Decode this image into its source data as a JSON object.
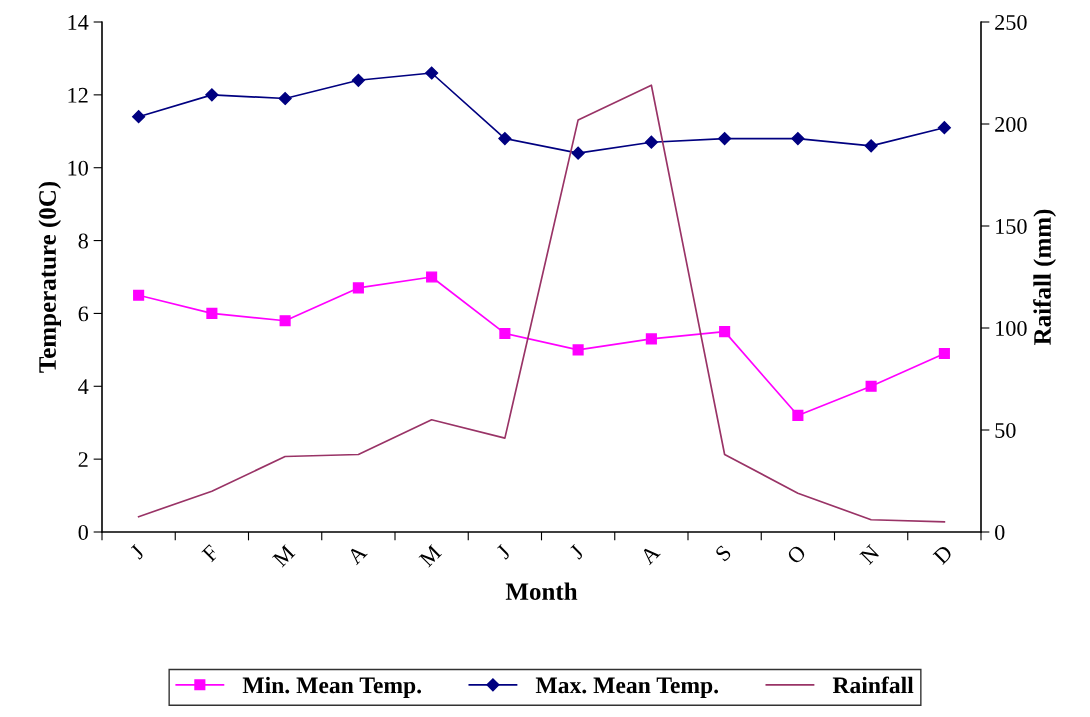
{
  "chart_data": {
    "type": "line",
    "xlabel": "Month",
    "ylabel": "Temperature (0C)",
    "y2label": "Raifall (mm)",
    "categories": [
      "J",
      "F",
      "M",
      "A",
      "M",
      "J",
      "J",
      "A",
      "S",
      "O",
      "N",
      "D"
    ],
    "series": [
      {
        "name": "Min. Mean Temp.",
        "color": "#ff00ff",
        "marker": "square",
        "values": [
          6.5,
          6.0,
          5.8,
          6.7,
          7.0,
          5.45,
          5.0,
          5.3,
          5.5,
          3.2,
          4.0,
          4.9
        ]
      },
      {
        "name": "Max. Mean Temp.",
        "color": "#000080",
        "marker": "diamond",
        "values": [
          11.4,
          12.0,
          11.9,
          12.4,
          12.6,
          10.8,
          10.4,
          10.7,
          10.8,
          10.8,
          10.6,
          11.1
        ]
      },
      {
        "name": "Rainfall",
        "color": "#993366",
        "marker": "none",
        "axis": "y2",
        "values": [
          7.5,
          20,
          37,
          38,
          55,
          46,
          202,
          219,
          38,
          19,
          6,
          5
        ]
      }
    ],
    "ylim": [
      0,
      14
    ],
    "yticks": [
      0,
      2,
      4,
      6,
      8,
      10,
      12,
      14
    ],
    "y2lim": [
      0,
      250
    ],
    "y2ticks": [
      0,
      50,
      100,
      150,
      200,
      250
    ],
    "grid": false,
    "legend": "bottom"
  }
}
